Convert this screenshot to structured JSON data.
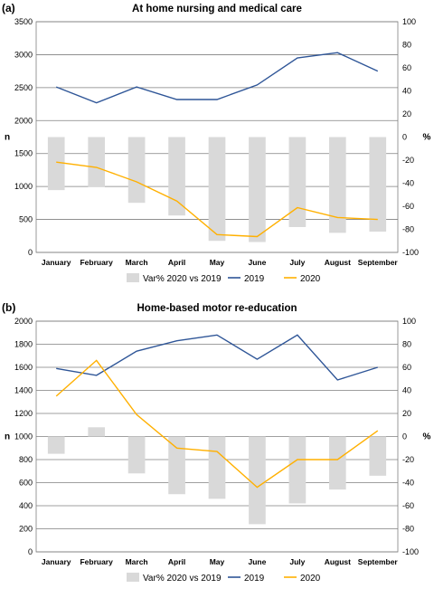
{
  "chart_data": [
    {
      "type": "bar+line",
      "panel_label": "(a)",
      "title": "At home nursing and medical care",
      "categories": [
        "January",
        "February",
        "March",
        "April",
        "May",
        "June",
        "July",
        "August",
        "September"
      ],
      "ylabel": "n",
      "y2label": "%",
      "ylim": [
        0,
        3500
      ],
      "yticks": [
        0,
        500,
        1000,
        1500,
        2000,
        2500,
        3000,
        3500
      ],
      "y2lim": [
        -100,
        100
      ],
      "y2ticks": [
        -100,
        -80,
        -60,
        -40,
        -20,
        0,
        20,
        40,
        60,
        80,
        100
      ],
      "grid": "horizontal",
      "legend": "bottom",
      "bars": {
        "name": "Var% 2020 vs 2019",
        "axis": "right",
        "color": "#d9d9d9",
        "values": [
          -46,
          -43,
          -57,
          -68,
          -90,
          -91,
          -78,
          -83,
          -82
        ]
      },
      "series": [
        {
          "name": "2019",
          "axis": "left",
          "color": "#2e5597",
          "values": [
            2510,
            2270,
            2510,
            2320,
            2320,
            2540,
            2950,
            3030,
            2750
          ]
        },
        {
          "name": "2020",
          "axis": "left",
          "color": "#ffb000",
          "values": [
            1370,
            1290,
            1070,
            780,
            270,
            240,
            680,
            530,
            500
          ]
        }
      ]
    },
    {
      "type": "bar+line",
      "panel_label": "(b)",
      "title": "Home-based motor re-education",
      "categories": [
        "January",
        "February",
        "March",
        "April",
        "May",
        "June",
        "July",
        "August",
        "September"
      ],
      "ylabel": "n",
      "y2label": "%",
      "ylim": [
        0,
        2000
      ],
      "yticks": [
        0,
        200,
        400,
        600,
        800,
        1000,
        1200,
        1400,
        1600,
        1800,
        2000
      ],
      "y2lim": [
        -100,
        100
      ],
      "y2ticks": [
        -100,
        -80,
        -60,
        -40,
        -20,
        0,
        20,
        40,
        60,
        80,
        100
      ],
      "grid": "horizontal",
      "legend": "bottom",
      "bars": {
        "name": "Var% 2020 vs 2019",
        "axis": "right",
        "color": "#d9d9d9",
        "values": [
          -15,
          8,
          -32,
          -50,
          -54,
          -76,
          -58,
          -46,
          -34
        ]
      },
      "series": [
        {
          "name": "2019",
          "axis": "left",
          "color": "#2e5597",
          "values": [
            1590,
            1530,
            1740,
            1830,
            1880,
            1670,
            1880,
            1490,
            1600
          ]
        },
        {
          "name": "2020",
          "axis": "left",
          "color": "#ffb000",
          "values": [
            1350,
            1660,
            1190,
            900,
            870,
            560,
            800,
            800,
            1050
          ]
        }
      ]
    }
  ]
}
